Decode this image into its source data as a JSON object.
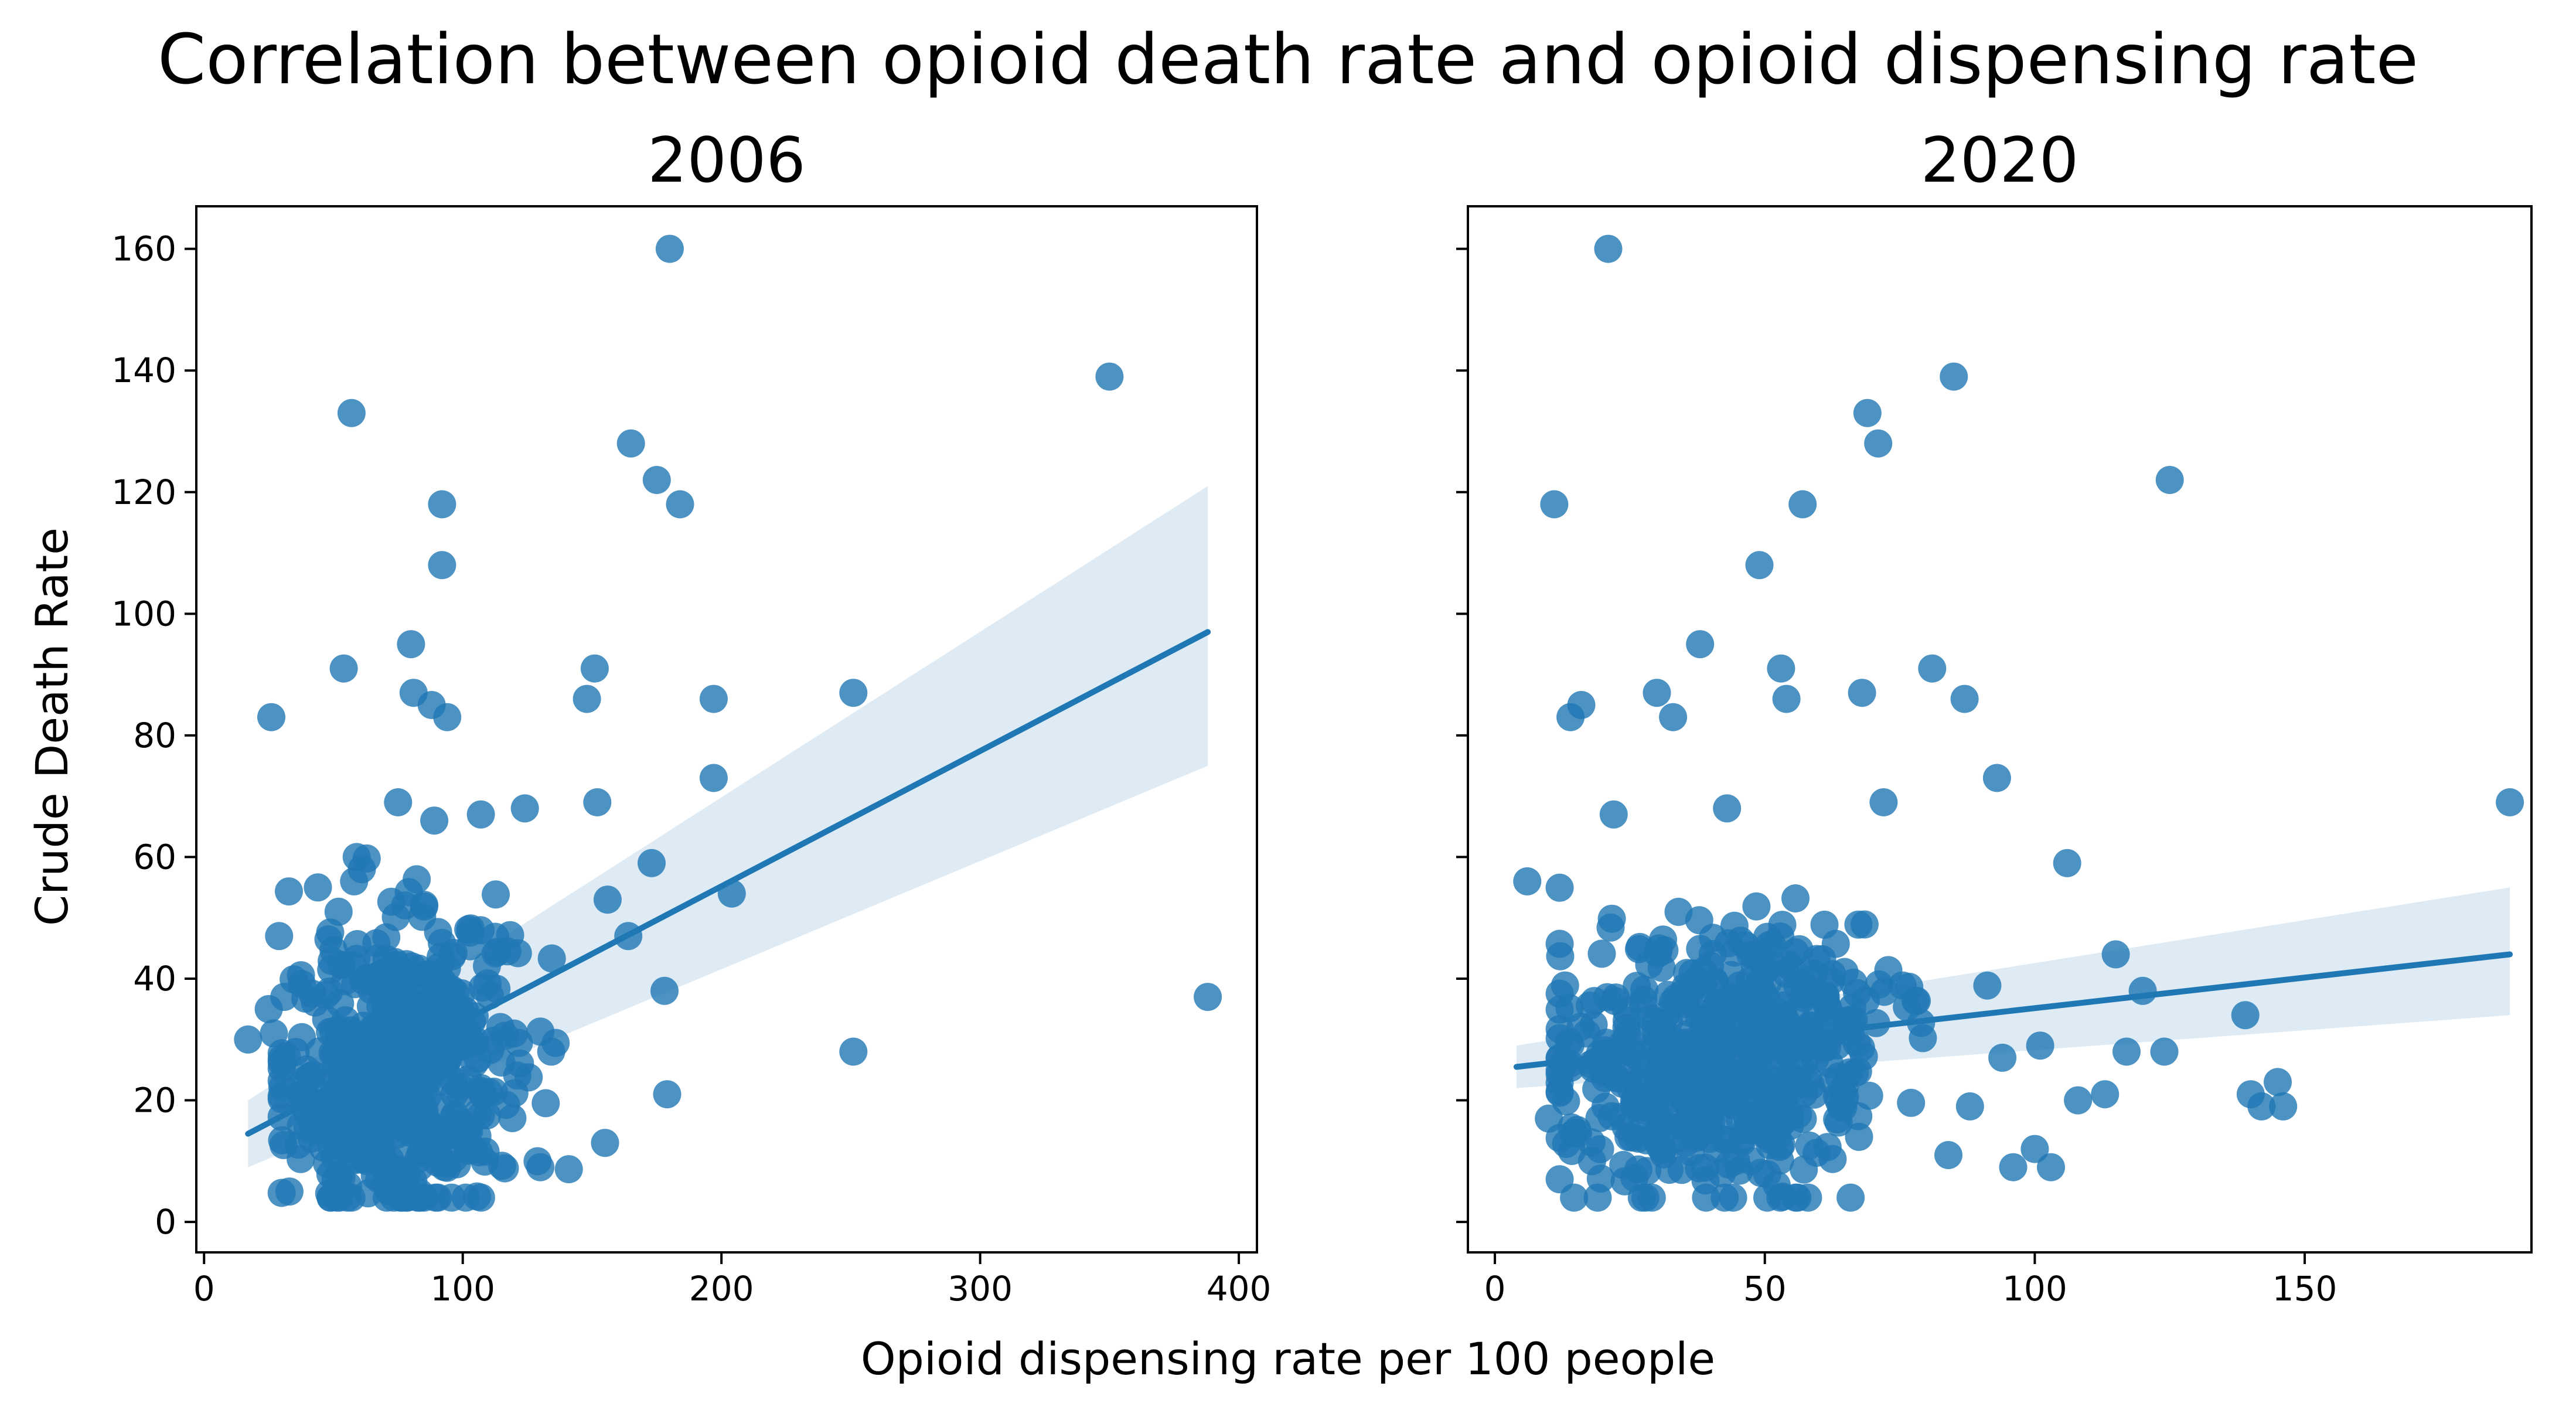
{
  "figure": {
    "title": "Correlation between opioid death rate and opioid dispensing rate",
    "xlabel": "Opioid dispensing rate per 100 people",
    "ylabel": "Crude Death Rate",
    "point_color": "#1f77b4",
    "line_color": "#1f77b4"
  },
  "chart_data": [
    {
      "type": "scatter",
      "title": "2006",
      "xlabel": "Opioid dispensing rate per 100 people",
      "ylabel": "Crude Death Rate",
      "xlim": [
        -3,
        407
      ],
      "ylim": [
        -5,
        167
      ],
      "xticks": [
        0,
        100,
        200,
        300,
        400
      ],
      "yticks": [
        0,
        20,
        40,
        60,
        80,
        100,
        120,
        140,
        160
      ],
      "grid": false,
      "legend": "none",
      "regression": {
        "x": [
          17,
          388
        ],
        "y": [
          14.5,
          97
        ],
        "ci_upper": [
          20,
          121
        ],
        "ci_lower": [
          9,
          75
        ]
      },
      "outliers": {
        "x": [
          180,
          57,
          350,
          165,
          175,
          92,
          184,
          92,
          80,
          54,
          81,
          88,
          94,
          26,
          251,
          151,
          148,
          197,
          197,
          204,
          251,
          388,
          17,
          89,
          107,
          124,
          75,
          59,
          58,
          29,
          31,
          25,
          164,
          173,
          178,
          179,
          155,
          52,
          61,
          44,
          27,
          33,
          156,
          152,
          130
        ],
        "y": [
          160,
          133,
          139,
          128,
          122,
          118,
          118,
          108,
          95,
          91,
          87,
          85,
          83,
          83,
          87,
          91,
          86,
          86,
          73,
          54,
          28,
          37,
          30,
          66,
          67,
          68,
          69,
          60,
          56,
          47,
          37,
          35,
          47,
          59,
          38,
          21,
          13,
          51,
          58,
          55,
          31,
          5,
          53,
          69,
          9
        ]
      },
      "cluster": {
        "n": 520,
        "x_center": 75,
        "x_spread": 22,
        "y_center": 25,
        "y_spread": 12,
        "x_min": 30,
        "x_max": 145,
        "y_min": 4,
        "y_max": 62
      }
    },
    {
      "type": "scatter",
      "title": "2020",
      "xlabel": "Opioid dispensing rate per 100 people",
      "ylabel": "Crude Death Rate",
      "xlim": [
        -5,
        192
      ],
      "ylim": [
        -5,
        167
      ],
      "xticks": [
        0,
        50,
        100,
        150
      ],
      "yticks": [
        0,
        20,
        40,
        60,
        80,
        100,
        120,
        140,
        160
      ],
      "grid": false,
      "legend": "none",
      "regression": {
        "x": [
          4,
          188
        ],
        "y": [
          25.5,
          44
        ],
        "ci_upper": [
          29,
          55
        ],
        "ci_lower": [
          22,
          34
        ]
      },
      "outliers": {
        "x": [
          21,
          85,
          69,
          71,
          125,
          11,
          57,
          49,
          38,
          53,
          81,
          54,
          68,
          30,
          87,
          16,
          14,
          33,
          188,
          93,
          72,
          106,
          22,
          43,
          6,
          115,
          120,
          124,
          117,
          139,
          140,
          142,
          145,
          146,
          113,
          108,
          101,
          94,
          96,
          88,
          84,
          100,
          103,
          10,
          18,
          17
        ],
        "y": [
          160,
          139,
          133,
          128,
          122,
          118,
          118,
          108,
          95,
          91,
          91,
          86,
          87,
          87,
          86,
          85,
          83,
          83,
          69,
          73,
          69,
          59,
          67,
          68,
          56,
          44,
          38,
          28,
          28,
          34,
          21,
          19,
          23,
          19,
          21,
          20,
          29,
          27,
          9,
          19,
          11,
          12,
          9,
          17,
          10,
          31
        ]
      },
      "cluster": {
        "n": 540,
        "x_center": 42,
        "x_spread": 15,
        "y_center": 26,
        "y_spread": 11,
        "x_min": 12,
        "x_max": 95,
        "y_min": 4,
        "y_max": 58
      }
    }
  ]
}
